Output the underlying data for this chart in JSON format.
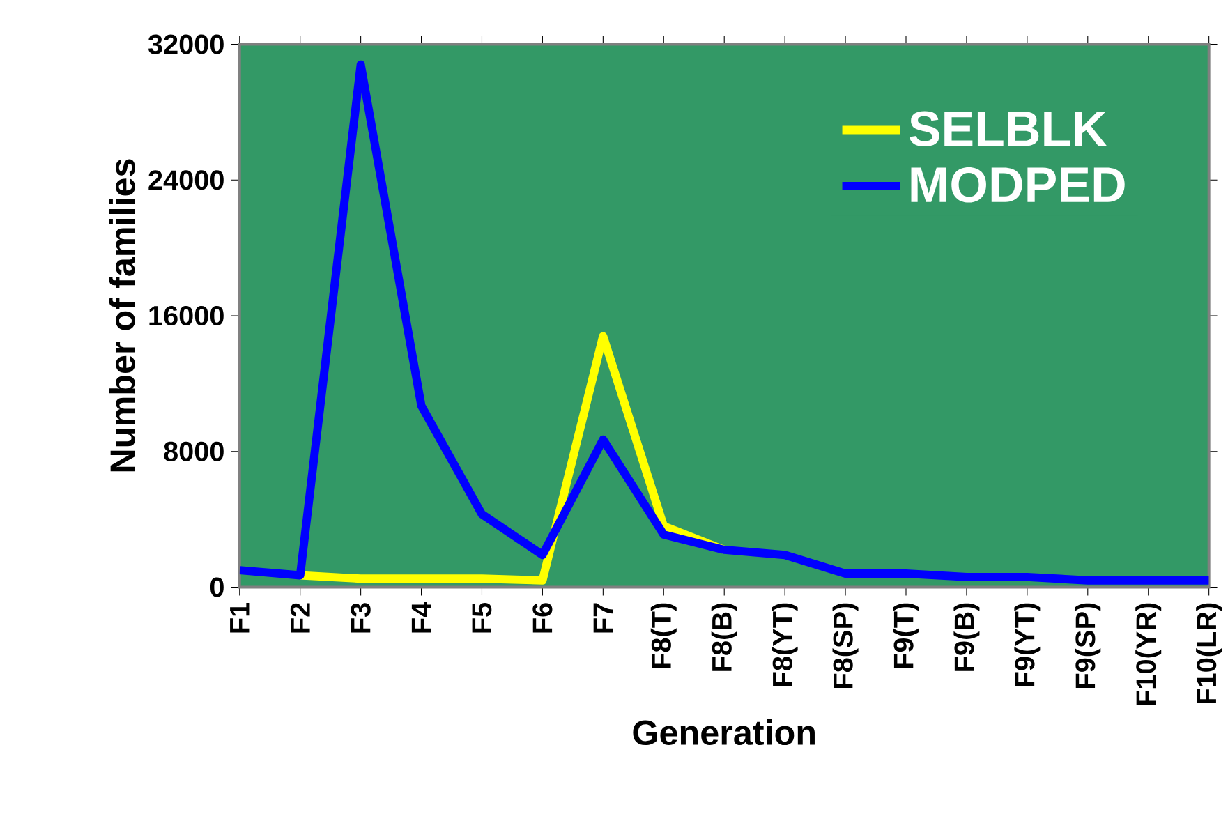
{
  "chart_data": {
    "type": "line",
    "xlabel": "Generation",
    "ylabel": "Number of families",
    "categories": [
      "F1",
      "F2",
      "F3",
      "F4",
      "F5",
      "F6",
      "F7",
      "F8(T)",
      "F8(B)",
      "F8(YT)",
      "F8(SP)",
      "F9(T)",
      "F9(B)",
      "F9(YT)",
      "F9(SP)",
      "F10(YR)",
      "F10(LR)"
    ],
    "series": [
      {
        "name": "SELBLK",
        "color": "#ffff00",
        "values": [
          null,
          700,
          500,
          500,
          500,
          400,
          14800,
          3600,
          2200,
          null,
          null,
          null,
          null,
          null,
          null,
          null,
          null
        ]
      },
      {
        "name": "MODPED",
        "color": "#0000ff",
        "values": [
          1000,
          700,
          30800,
          10700,
          4300,
          1900,
          8700,
          3100,
          2200,
          1900,
          800,
          800,
          600,
          600,
          400,
          400,
          400
        ]
      }
    ],
    "ylim": [
      0,
      32000
    ],
    "yticks": [
      0,
      8000,
      16000,
      24000,
      32000
    ],
    "legend": "top right",
    "marker": "none",
    "line_style": "solid",
    "grid": false
  }
}
